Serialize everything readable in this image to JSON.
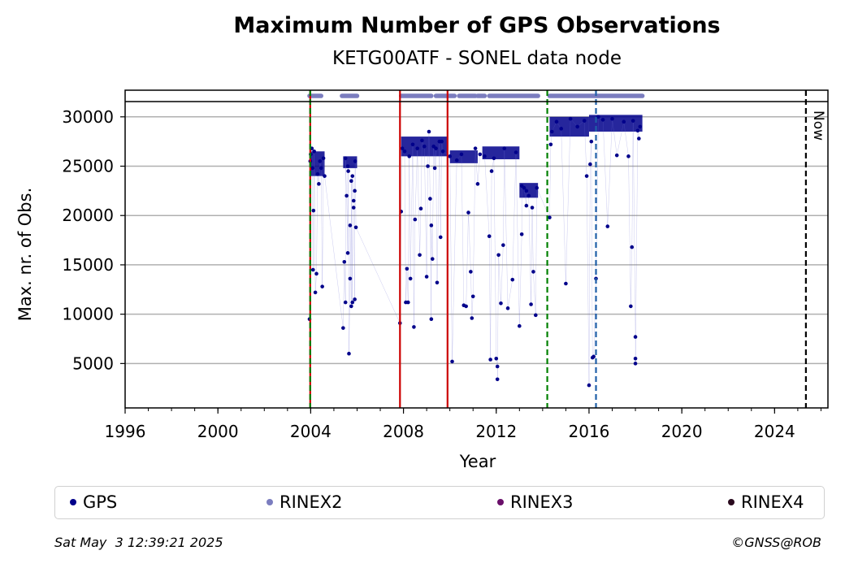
{
  "chart_data": {
    "type": "scatter",
    "title": "Maximum Number of GPS Observations",
    "subtitle": "KETG00ATF - SONEL data node",
    "xlabel": "Year",
    "ylabel": "Max. nr. of Obs.",
    "xlim": [
      1996,
      2026.3
    ],
    "ylim": [
      500,
      32700
    ],
    "xticks": [
      "1996",
      "2000",
      "2004",
      "2008",
      "2012",
      "2016",
      "2020",
      "2024"
    ],
    "yticks": [
      "5000",
      "10000",
      "15000",
      "20000",
      "25000",
      "30000"
    ],
    "grid": "horizontal",
    "series": [
      {
        "name": "GPS",
        "color": "#00008B",
        "points": [
          [
            2003.95,
            9500
          ],
          [
            2003.98,
            25500
          ],
          [
            2004.0,
            26200
          ],
          [
            2004.05,
            26800
          ],
          [
            2004.08,
            24800
          ],
          [
            2004.1,
            14500
          ],
          [
            2004.12,
            20500
          ],
          [
            2004.15,
            26500
          ],
          [
            2004.2,
            12200
          ],
          [
            2004.25,
            14100
          ],
          [
            2004.3,
            24200
          ],
          [
            2004.35,
            23200
          ],
          [
            2004.4,
            25500
          ],
          [
            2004.5,
            12800
          ],
          [
            2004.45,
            24800
          ],
          [
            2004.55,
            25800
          ],
          [
            2004.6,
            24000
          ],
          [
            2005.4,
            8600
          ],
          [
            2005.45,
            15300
          ],
          [
            2005.5,
            11200
          ],
          [
            2005.55,
            22000
          ],
          [
            2005.6,
            16200
          ],
          [
            2005.62,
            24500
          ],
          [
            2005.65,
            6000
          ],
          [
            2005.7,
            13600
          ],
          [
            2005.75,
            10800
          ],
          [
            2005.8,
            11200
          ],
          [
            2005.85,
            21500
          ],
          [
            2005.9,
            11500
          ],
          [
            2005.95,
            18800
          ],
          [
            2005.5,
            25800
          ],
          [
            2005.6,
            25000
          ],
          [
            2005.7,
            19000
          ],
          [
            2005.8,
            24000
          ],
          [
            2005.9,
            22500
          ],
          [
            2005.92,
            25500
          ],
          [
            2005.75,
            23500
          ],
          [
            2005.85,
            20800
          ],
          [
            2007.85,
            9100
          ],
          [
            2007.9,
            20400
          ],
          [
            2007.95,
            26800
          ],
          [
            2008.05,
            26500
          ],
          [
            2008.1,
            11200
          ],
          [
            2008.15,
            14600
          ],
          [
            2008.2,
            11200
          ],
          [
            2008.25,
            26000
          ],
          [
            2008.3,
            13600
          ],
          [
            2008.4,
            27200
          ],
          [
            2008.45,
            8700
          ],
          [
            2008.5,
            19600
          ],
          [
            2008.6,
            26800
          ],
          [
            2008.7,
            16000
          ],
          [
            2008.75,
            20700
          ],
          [
            2008.9,
            27000
          ],
          [
            2009.0,
            13800
          ],
          [
            2009.05,
            25000
          ],
          [
            2009.1,
            28500
          ],
          [
            2009.15,
            21700
          ],
          [
            2009.2,
            9500
          ],
          [
            2009.25,
            15600
          ],
          [
            2009.3,
            27000
          ],
          [
            2009.35,
            24800
          ],
          [
            2009.45,
            13200
          ],
          [
            2009.55,
            27500
          ],
          [
            2009.6,
            17800
          ],
          [
            2009.7,
            26500
          ],
          [
            2009.2,
            19000
          ],
          [
            2009.4,
            26800
          ],
          [
            2008.8,
            27600
          ],
          [
            2009.65,
            27500
          ],
          [
            2010.0,
            26000
          ],
          [
            2010.1,
            5200
          ],
          [
            2010.3,
            25600
          ],
          [
            2010.5,
            26200
          ],
          [
            2010.6,
            10900
          ],
          [
            2010.7,
            10800
          ],
          [
            2010.8,
            20300
          ],
          [
            2010.9,
            14300
          ],
          [
            2010.95,
            9600
          ],
          [
            2011.0,
            11800
          ],
          [
            2011.1,
            26800
          ],
          [
            2011.2,
            23200
          ],
          [
            2011.3,
            26200
          ],
          [
            2011.5,
            26000
          ],
          [
            2011.7,
            17900
          ],
          [
            2011.75,
            5400
          ],
          [
            2011.8,
            24500
          ],
          [
            2011.9,
            25800
          ],
          [
            2012.0,
            5500
          ],
          [
            2012.05,
            4700
          ],
          [
            2012.05,
            3400
          ],
          [
            2012.1,
            16000
          ],
          [
            2012.2,
            11100
          ],
          [
            2012.3,
            17000
          ],
          [
            2012.35,
            26800
          ],
          [
            2012.5,
            10600
          ],
          [
            2012.7,
            13500
          ],
          [
            2012.85,
            26400
          ],
          [
            2013.0,
            8800
          ],
          [
            2013.1,
            18100
          ],
          [
            2013.2,
            22800
          ],
          [
            2013.3,
            21000
          ],
          [
            2013.4,
            22000
          ],
          [
            2013.5,
            11000
          ],
          [
            2013.55,
            20800
          ],
          [
            2013.6,
            14300
          ],
          [
            2013.7,
            9900
          ],
          [
            2013.75,
            22800
          ],
          [
            2013.1,
            23000
          ],
          [
            2013.3,
            22500
          ],
          [
            2014.3,
            19800
          ],
          [
            2014.35,
            27200
          ],
          [
            2014.4,
            28500
          ],
          [
            2014.6,
            29500
          ],
          [
            2014.8,
            28800
          ],
          [
            2015.0,
            13100
          ],
          [
            2015.2,
            29800
          ],
          [
            2015.5,
            29000
          ],
          [
            2015.8,
            29600
          ],
          [
            2015.9,
            24000
          ],
          [
            2016.0,
            2800
          ],
          [
            2016.05,
            25200
          ],
          [
            2016.1,
            27500
          ],
          [
            2016.15,
            5600
          ],
          [
            2016.2,
            5700
          ],
          [
            2016.3,
            13600
          ],
          [
            2016.4,
            30000
          ],
          [
            2016.6,
            29700
          ],
          [
            2016.8,
            18900
          ],
          [
            2017.0,
            29800
          ],
          [
            2017.2,
            26100
          ],
          [
            2017.5,
            29500
          ],
          [
            2017.7,
            26000
          ],
          [
            2017.8,
            10800
          ],
          [
            2017.85,
            16800
          ],
          [
            2017.9,
            29600
          ],
          [
            2018.0,
            7700
          ],
          [
            2018.0,
            5500
          ],
          [
            2018.0,
            5000
          ],
          [
            2018.1,
            28600
          ],
          [
            2018.15,
            27800
          ],
          [
            2018.2,
            29000
          ]
        ]
      },
      {
        "name": "RINEX2",
        "color": "#7B7DBF",
        "segments": [
          [
            2003.95,
            2004.45
          ],
          [
            2005.35,
            2006.0
          ],
          [
            2007.9,
            2009.2
          ],
          [
            2009.4,
            2010.2
          ],
          [
            2010.4,
            2011.1
          ],
          [
            2011.2,
            2011.5
          ],
          [
            2011.7,
            2013.8
          ],
          [
            2014.3,
            2018.3
          ]
        ]
      },
      {
        "name": "RINEX3",
        "color": "#6A0F6A"
      },
      {
        "name": "RINEX4",
        "color": "#2A0A1E"
      }
    ],
    "bands": [
      {
        "from": 2004.0,
        "to": 2004.6,
        "lo": 24000,
        "hi": 26500
      },
      {
        "from": 2005.4,
        "to": 2006.0,
        "lo": 24800,
        "hi": 26000
      },
      {
        "from": 2007.9,
        "to": 2009.9,
        "lo": 26000,
        "hi": 28000
      },
      {
        "from": 2010.0,
        "to": 2011.2,
        "lo": 25300,
        "hi": 26600
      },
      {
        "from": 2011.4,
        "to": 2013.0,
        "lo": 25700,
        "hi": 27000
      },
      {
        "from": 2013.0,
        "to": 2013.8,
        "lo": 21800,
        "hi": 23300
      },
      {
        "from": 2014.3,
        "to": 2016.0,
        "lo": 28000,
        "hi": 30000
      },
      {
        "from": 2016.0,
        "to": 2018.3,
        "lo": 28500,
        "hi": 30200
      }
    ],
    "vlines": [
      {
        "x": 2003.98,
        "color": "#cc0000",
        "style": "solid"
      },
      {
        "x": 2003.98,
        "color": "#008000",
        "style": "dashed"
      },
      {
        "x": 2007.85,
        "color": "#cc0000",
        "style": "solid"
      },
      {
        "x": 2009.9,
        "color": "#cc0000",
        "style": "solid"
      },
      {
        "x": 2014.2,
        "color": "#008000",
        "style": "dashed"
      },
      {
        "x": 2016.3,
        "color": "#1f5fa8",
        "style": "dashed"
      },
      {
        "x": 2025.35,
        "color": "#000000",
        "style": "dashed",
        "label": "Now"
      }
    ]
  },
  "legend": {
    "items": [
      {
        "label": "GPS",
        "color": "#00008B"
      },
      {
        "label": "RINEX2",
        "color": "#7B7DBF"
      },
      {
        "label": "RINEX3",
        "color": "#6A0F6A"
      },
      {
        "label": "RINEX4",
        "color": "#2A0A1E"
      }
    ]
  },
  "footer": {
    "timestamp": "Sat May  3 12:39:21 2025",
    "copyright": "©GNSS@ROB"
  }
}
